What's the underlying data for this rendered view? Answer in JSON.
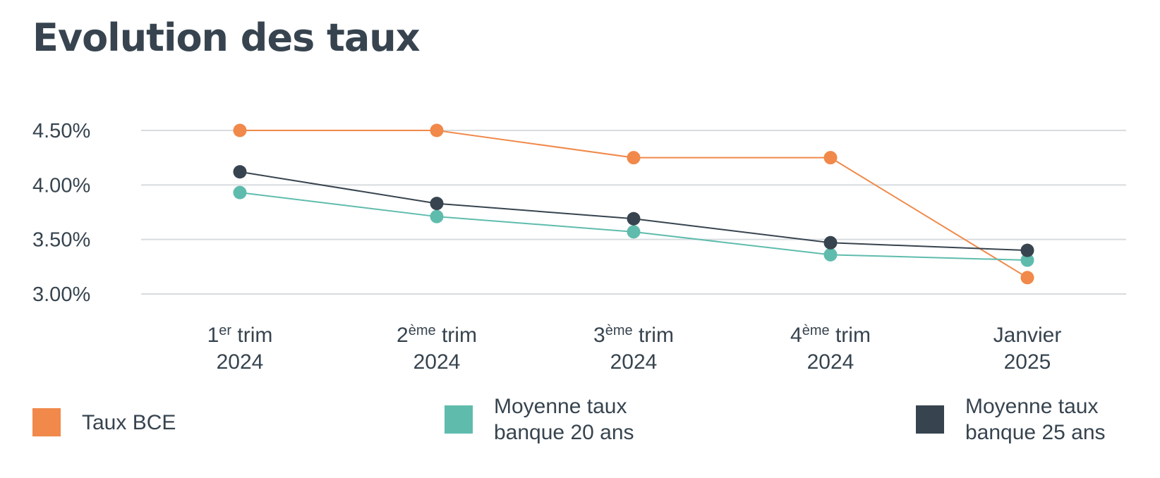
{
  "chart_data": {
    "type": "line",
    "title": "Evolution des taux",
    "categories": [
      {
        "base": "1",
        "sup": "er",
        "rest": " trim",
        "line2": "2024"
      },
      {
        "base": "2",
        "sup": "ème",
        "rest": " trim",
        "line2": "2024"
      },
      {
        "base": "3",
        "sup": "ème",
        "rest": " trim",
        "line2": "2024"
      },
      {
        "base": "4",
        "sup": "ème",
        "rest": " trim",
        "line2": "2024"
      },
      {
        "base": "Janvier",
        "sup": "",
        "rest": "",
        "line2": "2025"
      }
    ],
    "yticks": [
      3.0,
      3.5,
      4.0,
      4.5
    ],
    "ytick_labels": [
      "3.00%",
      "3.50%",
      "4.00%",
      "4.50%"
    ],
    "ylim": [
      3.0,
      4.5
    ],
    "grid": true,
    "legend_position": "bottom",
    "series": [
      {
        "name": "Taux BCE",
        "color": "#f0894a",
        "values": [
          4.5,
          4.5,
          4.25,
          4.25,
          3.15
        ]
      },
      {
        "name": "Moyenne taux\nbanque 20 ans",
        "color": "#5fbcad",
        "values": [
          3.93,
          3.71,
          3.57,
          3.36,
          3.31
        ]
      },
      {
        "name": "Moyenne taux\nbanque 25 ans",
        "color": "#37444f",
        "values": [
          4.12,
          3.83,
          3.69,
          3.47,
          3.4
        ]
      }
    ]
  },
  "colors": {
    "text": "#37444f",
    "grid": "#d8dcdf"
  }
}
